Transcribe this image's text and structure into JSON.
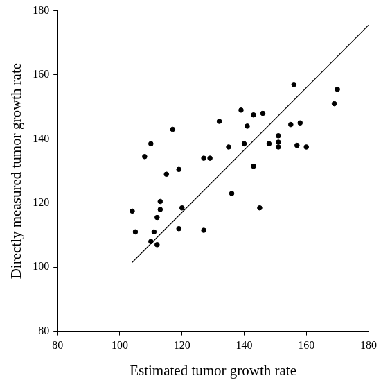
{
  "chart_data": {
    "type": "scatter",
    "x_label": "Estimated tumor growth rate",
    "y_label": "Directly measured tumor growth rate",
    "xlim": [
      80,
      180
    ],
    "xticks": [
      80,
      100,
      120,
      140,
      160,
      180
    ],
    "ylim": [
      80,
      180
    ],
    "yticks": [
      80,
      100,
      120,
      140,
      160,
      180
    ],
    "grid": false,
    "series": [
      {
        "type": "scatter",
        "color": "#000000",
        "marker": "circle",
        "x": [
          104,
          105,
          108,
          110,
          110,
          111,
          112,
          112,
          113,
          113,
          115,
          117,
          119,
          119,
          120,
          127,
          127,
          129,
          132,
          135,
          136,
          139,
          140,
          141,
          143,
          143,
          145,
          146,
          148,
          151,
          151,
          151,
          155,
          156,
          157,
          158,
          160,
          169,
          170
        ],
        "values": [
          117.5,
          111,
          134.5,
          108,
          138.5,
          111,
          107,
          115.5,
          118,
          120.5,
          129,
          143,
          130.5,
          112,
          118.5,
          134,
          111.5,
          134,
          145.5,
          137.5,
          123,
          149,
          138.5,
          144,
          147.5,
          131.5,
          118.5,
          148,
          138.5,
          141,
          139,
          137.5,
          144.5,
          157,
          138,
          145,
          137.5,
          151,
          155.5
        ]
      },
      {
        "type": "line",
        "color": "#000000",
        "marker": "none",
        "line_style": "solid",
        "x": [
          104,
          180
        ],
        "values": [
          101.5,
          175.5
        ]
      }
    ]
  }
}
